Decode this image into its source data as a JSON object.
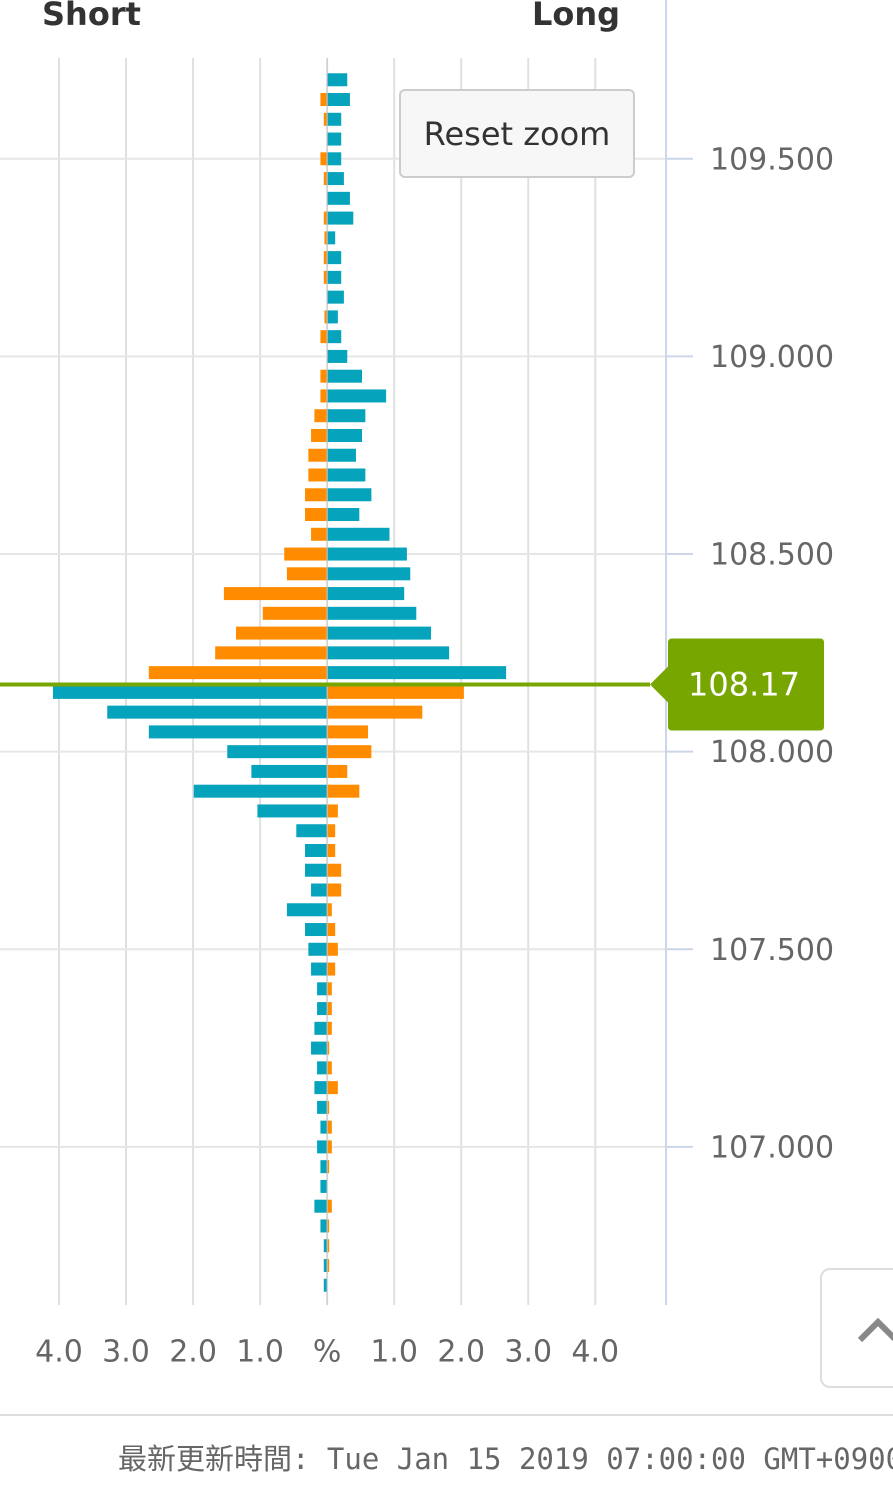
{
  "chart_data": {
    "type": "bar",
    "orientation": "horizontal",
    "left_label": "Short",
    "right_label": "Long",
    "y": [
      109.7,
      109.65,
      109.6,
      109.55,
      109.5,
      109.45,
      109.4,
      109.35,
      109.3,
      109.25,
      109.2,
      109.15,
      109.1,
      109.05,
      109.0,
      108.95,
      108.9,
      108.85,
      108.8,
      108.75,
      108.7,
      108.65,
      108.6,
      108.55,
      108.5,
      108.45,
      108.4,
      108.35,
      108.3,
      108.25,
      108.2,
      108.15,
      108.1,
      108.05,
      108.0,
      107.95,
      107.9,
      107.85,
      107.8,
      107.75,
      107.7,
      107.65,
      107.6,
      107.55,
      107.5,
      107.45,
      107.4,
      107.35,
      107.3,
      107.25,
      107.2,
      107.15,
      107.1,
      107.05,
      107.0,
      106.95,
      106.9,
      106.85,
      106.8,
      106.75,
      106.7,
      106.65
    ],
    "series": [
      {
        "color": "#06a3bc",
        "values": [
          0.3,
          0.34,
          0.21,
          0.21,
          0.21,
          0.25,
          0.34,
          0.39,
          0.12,
          0.21,
          0.21,
          0.25,
          0.16,
          0.21,
          0.3,
          0.52,
          0.88,
          0.57,
          0.52,
          0.43,
          0.57,
          0.66,
          0.48,
          0.93,
          1.19,
          1.24,
          1.15,
          1.33,
          1.55,
          1.82,
          2.67,
          -4.09,
          -3.28,
          -2.66,
          -1.49,
          -1.13,
          -1.99,
          -1.04,
          -0.46,
          -0.33,
          -0.33,
          -0.24,
          -0.6,
          -0.33,
          -0.28,
          -0.24,
          -0.15,
          -0.15,
          -0.19,
          -0.24,
          -0.15,
          -0.19,
          -0.15,
          -0.1,
          -0.15,
          -0.1,
          -0.1,
          -0.19,
          -0.1,
          -0.05,
          -0.05,
          -0.05
        ]
      },
      {
        "color": "#ff8c00",
        "values": [
          0,
          -0.1,
          -0.05,
          0,
          -0.1,
          -0.05,
          0,
          -0.05,
          -0.04,
          -0.05,
          -0.05,
          0,
          -0.04,
          -0.1,
          0,
          -0.1,
          -0.1,
          -0.19,
          -0.24,
          -0.28,
          -0.28,
          -0.33,
          -0.33,
          -0.24,
          -0.64,
          -0.6,
          -1.54,
          -0.96,
          -1.36,
          -1.67,
          -2.66,
          2.04,
          1.42,
          0.61,
          0.66,
          0.3,
          0.48,
          0.16,
          0.12,
          0.12,
          0.21,
          0.21,
          0.07,
          0.12,
          0.16,
          0.12,
          0.07,
          0.07,
          0.07,
          0.03,
          0.07,
          0.16,
          0.03,
          0.07,
          0.07,
          0.03,
          0,
          0.07,
          0.03,
          0.03,
          0.03,
          0
        ]
      }
    ],
    "xlim": [
      -4.88,
      5.04
    ],
    "xticks": [
      {
        "value": -4,
        "label": "4.0"
      },
      {
        "value": -3,
        "label": "3.0"
      },
      {
        "value": -2,
        "label": "2.0"
      },
      {
        "value": -1,
        "label": "1.0"
      },
      {
        "value": 0,
        "label": "%"
      },
      {
        "value": 1,
        "label": "1.0"
      },
      {
        "value": 2,
        "label": "2.0"
      },
      {
        "value": 3,
        "label": "3.0"
      },
      {
        "value": 4,
        "label": "4.0"
      }
    ],
    "ylim": [
      106.6,
      109.75
    ],
    "yticks": [
      {
        "value": 109.5,
        "label": "109.500"
      },
      {
        "value": 109,
        "label": "109.000"
      },
      {
        "value": 108.5,
        "label": "108.500"
      },
      {
        "value": 108,
        "label": "108.000"
      },
      {
        "value": 107.5,
        "label": "107.500"
      },
      {
        "value": 107,
        "label": "107.000"
      }
    ],
    "current_price": 108.17,
    "current_price_color": "#77a600",
    "grid": true
  },
  "reset_button": "Reset zoom",
  "footer": "最新更新時間: Tue Jan 15 2019 07:00:00 GMT+0900"
}
